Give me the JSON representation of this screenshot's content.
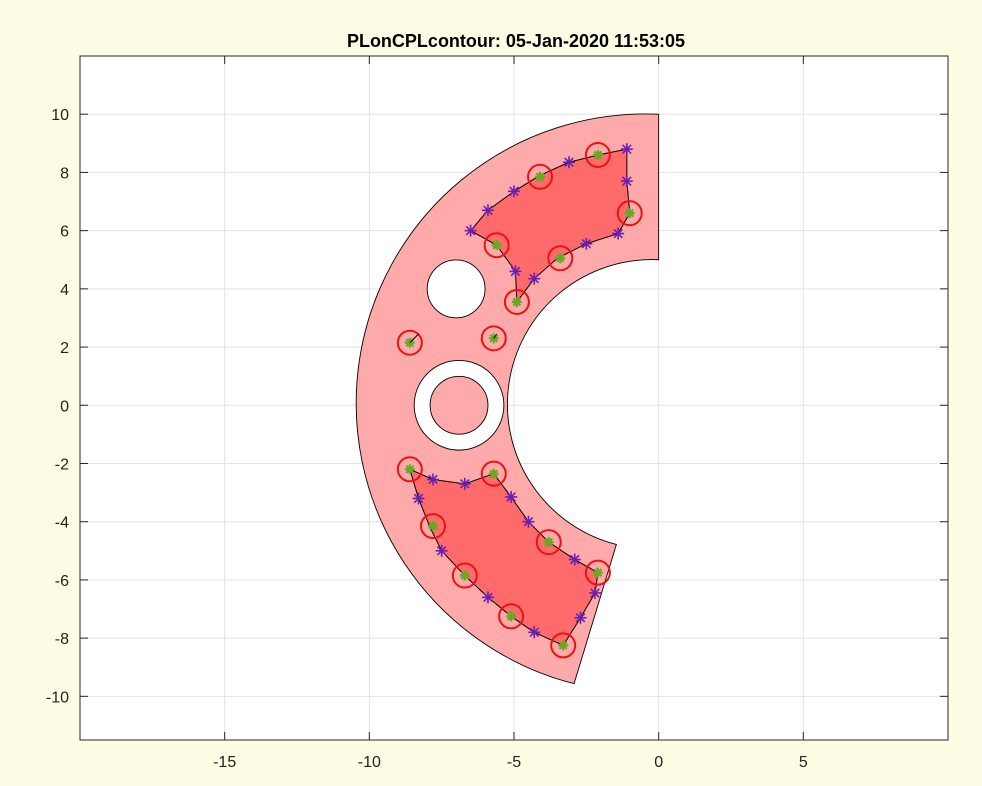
{
  "window": {
    "background": "#fdfde6"
  },
  "chart_data": {
    "type": "contour",
    "title": "PLonCPLcontour: 05-Jan-2020 11:53:05",
    "xlabel": "",
    "ylabel": "",
    "xlim": [
      -20,
      10
    ],
    "ylim": [
      -11.5,
      12
    ],
    "xticks": [
      -15,
      -10,
      -5,
      0,
      5
    ],
    "yticks": [
      10,
      8,
      6,
      4,
      2,
      0,
      -2,
      -4,
      -6,
      -8,
      -10
    ],
    "grid": true,
    "colors": {
      "region": "#ffaaaa",
      "selected_fill": "#ff6a6a",
      "circle": "#ee1111",
      "point": "#66aa22",
      "star": "#6a1fb0",
      "outline": "#000000",
      "hole": "#ffffff"
    },
    "region": {
      "center": [
        0,
        0
      ],
      "outer_radius": 10,
      "inner_radius": 5,
      "angle_start_deg": 90,
      "angle_end_deg": 253,
      "holes": [
        {
          "center": [
            -7.0,
            4.0
          ],
          "radius": 1.0
        },
        {
          "center": [
            -6.9,
            0.0
          ],
          "radius": 1.55
        }
      ],
      "island": {
        "center": [
          -6.9,
          0.0
        ],
        "radius": 1.0
      }
    },
    "upper_polygon": {
      "vertices": [
        [
          -6.5,
          6.0
        ],
        [
          -5.9,
          6.7
        ],
        [
          -5.0,
          7.35
        ],
        [
          -4.1,
          7.9
        ],
        [
          -3.1,
          8.35
        ],
        [
          -2.1,
          8.6
        ],
        [
          -1.1,
          8.8
        ],
        [
          -1.1,
          7.7
        ],
        [
          -1.0,
          6.6
        ],
        [
          -1.4,
          5.9
        ],
        [
          -2.5,
          5.55
        ],
        [
          -3.5,
          5.05
        ],
        [
          -4.3,
          4.35
        ],
        [
          -4.9,
          3.55
        ],
        [
          -4.95,
          4.6
        ],
        [
          -5.6,
          5.5
        ],
        [
          -6.5,
          6.0
        ]
      ],
      "circled_points": [
        [
          -2.1,
          8.6
        ],
        [
          -4.1,
          7.85
        ],
        [
          -1.0,
          6.6
        ],
        [
          -5.6,
          5.5
        ],
        [
          -3.4,
          5.05
        ],
        [
          -4.9,
          3.55
        ]
      ],
      "star_points": [
        [
          -6.5,
          6.0
        ],
        [
          -5.9,
          6.7
        ],
        [
          -5.0,
          7.35
        ],
        [
          -3.1,
          8.35
        ],
        [
          -1.1,
          8.8
        ],
        [
          -1.1,
          7.7
        ],
        [
          -1.4,
          5.9
        ],
        [
          -2.5,
          5.55
        ],
        [
          -4.3,
          4.35
        ],
        [
          -4.95,
          4.6
        ]
      ]
    },
    "lower_polygon": {
      "vertices": [
        [
          -8.6,
          -2.2
        ],
        [
          -8.3,
          -3.2
        ],
        [
          -7.9,
          -4.2
        ],
        [
          -7.5,
          -5.0
        ],
        [
          -6.7,
          -5.85
        ],
        [
          -5.9,
          -6.6
        ],
        [
          -5.1,
          -7.25
        ],
        [
          -4.3,
          -7.8
        ],
        [
          -3.3,
          -8.25
        ],
        [
          -2.7,
          -7.3
        ],
        [
          -2.2,
          -6.45
        ],
        [
          -2.1,
          -5.75
        ],
        [
          -2.9,
          -5.3
        ],
        [
          -3.8,
          -4.7
        ],
        [
          -4.5,
          -4.0
        ],
        [
          -5.1,
          -3.15
        ],
        [
          -5.7,
          -2.35
        ],
        [
          -6.7,
          -2.7
        ],
        [
          -7.8,
          -2.55
        ],
        [
          -8.6,
          -2.2
        ]
      ],
      "circled_points": [
        [
          -8.6,
          -2.2
        ],
        [
          -5.7,
          -2.35
        ],
        [
          -7.8,
          -4.15
        ],
        [
          -3.8,
          -4.7
        ],
        [
          -6.7,
          -5.85
        ],
        [
          -2.1,
          -5.75
        ],
        [
          -5.1,
          -7.25
        ],
        [
          -3.3,
          -8.25
        ]
      ],
      "star_points": [
        [
          -7.8,
          -2.55
        ],
        [
          -6.7,
          -2.7
        ],
        [
          -8.3,
          -3.2
        ],
        [
          -5.1,
          -3.15
        ],
        [
          -4.5,
          -4.0
        ],
        [
          -7.5,
          -5.0
        ],
        [
          -2.9,
          -5.3
        ],
        [
          -5.9,
          -6.6
        ],
        [
          -2.2,
          -6.45
        ],
        [
          -2.7,
          -7.3
        ],
        [
          -4.3,
          -7.8
        ]
      ]
    },
    "isolated_points": [
      {
        "center": [
          -8.6,
          2.15
        ],
        "marker_tip": [
          -8.3,
          2.45
        ]
      },
      {
        "center": [
          -5.7,
          2.3
        ],
        "marker_tip": [
          -5.6,
          2.45
        ]
      }
    ]
  }
}
